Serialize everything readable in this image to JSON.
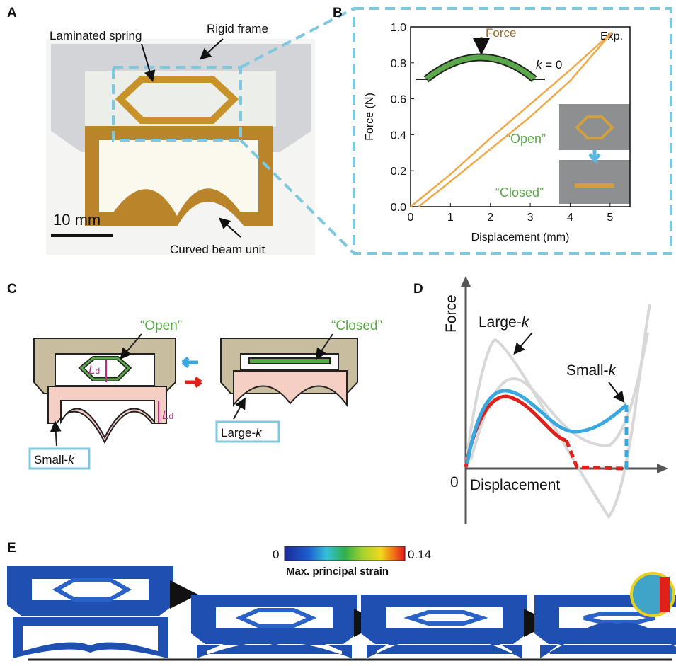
{
  "panels": {
    "a": {
      "label": "A",
      "annotations": [
        "Laminated spring",
        "Rigid frame",
        "Curved beam unit"
      ],
      "scale_bar": "10 mm"
    },
    "b": {
      "label": "B",
      "chart": {
        "type": "line",
        "xlabel": "Displacement (mm)",
        "ylabel": "Force (N)",
        "xlim": [
          0,
          5.5
        ],
        "ylim": [
          0,
          1.0
        ],
        "xticks": [
          0,
          1,
          2,
          3,
          4,
          5
        ],
        "yticks": [
          {
            "value": 0,
            "label": "0.0"
          },
          {
            "value": 0.2,
            "label": "0.2"
          },
          {
            "value": 0.4,
            "label": "0.4"
          },
          {
            "value": 0.6,
            "label": "0.6"
          },
          {
            "value": 0.8,
            "label": "0.8"
          },
          {
            "value": 1.0,
            "label": "1.0"
          }
        ],
        "series": [
          {
            "name": "Exp.",
            "color": "#f0a848",
            "x": [
              0,
              1,
              2,
              3,
              4,
              5.05
            ],
            "values": [
              0,
              0.18,
              0.38,
              0.57,
              0.76,
              0.97
            ]
          },
          {
            "color": "#f0a848",
            "x": [
              5.05,
              4,
              3,
              2,
              1,
              0.2
            ],
            "values": [
              0.97,
              0.7,
              0.5,
              0.32,
              0.14,
              0
            ]
          }
        ],
        "force_label": "Force",
        "k_symbol": "k",
        "k_value": " = 0",
        "open": "“Open”",
        "closed": "“Closed”"
      }
    },
    "c": {
      "label": "C",
      "open": "“Open”",
      "closed": "“Closed”",
      "ld_symbol": "L",
      "ld_sub": "d",
      "small_prefix": "Small-",
      "large_prefix": "Large-",
      "k_symbol": "k"
    },
    "d": {
      "label": "D",
      "ylabel": "Force",
      "xlabel": "Displacement",
      "origin": "0",
      "large_prefix": "Large-",
      "small_prefix": "Small-",
      "k_symbol": "k"
    },
    "e": {
      "label": "E",
      "colorbar_min": "0",
      "colorbar_max": "0.14",
      "colorbar_label": "Max. principal strain"
    }
  }
}
